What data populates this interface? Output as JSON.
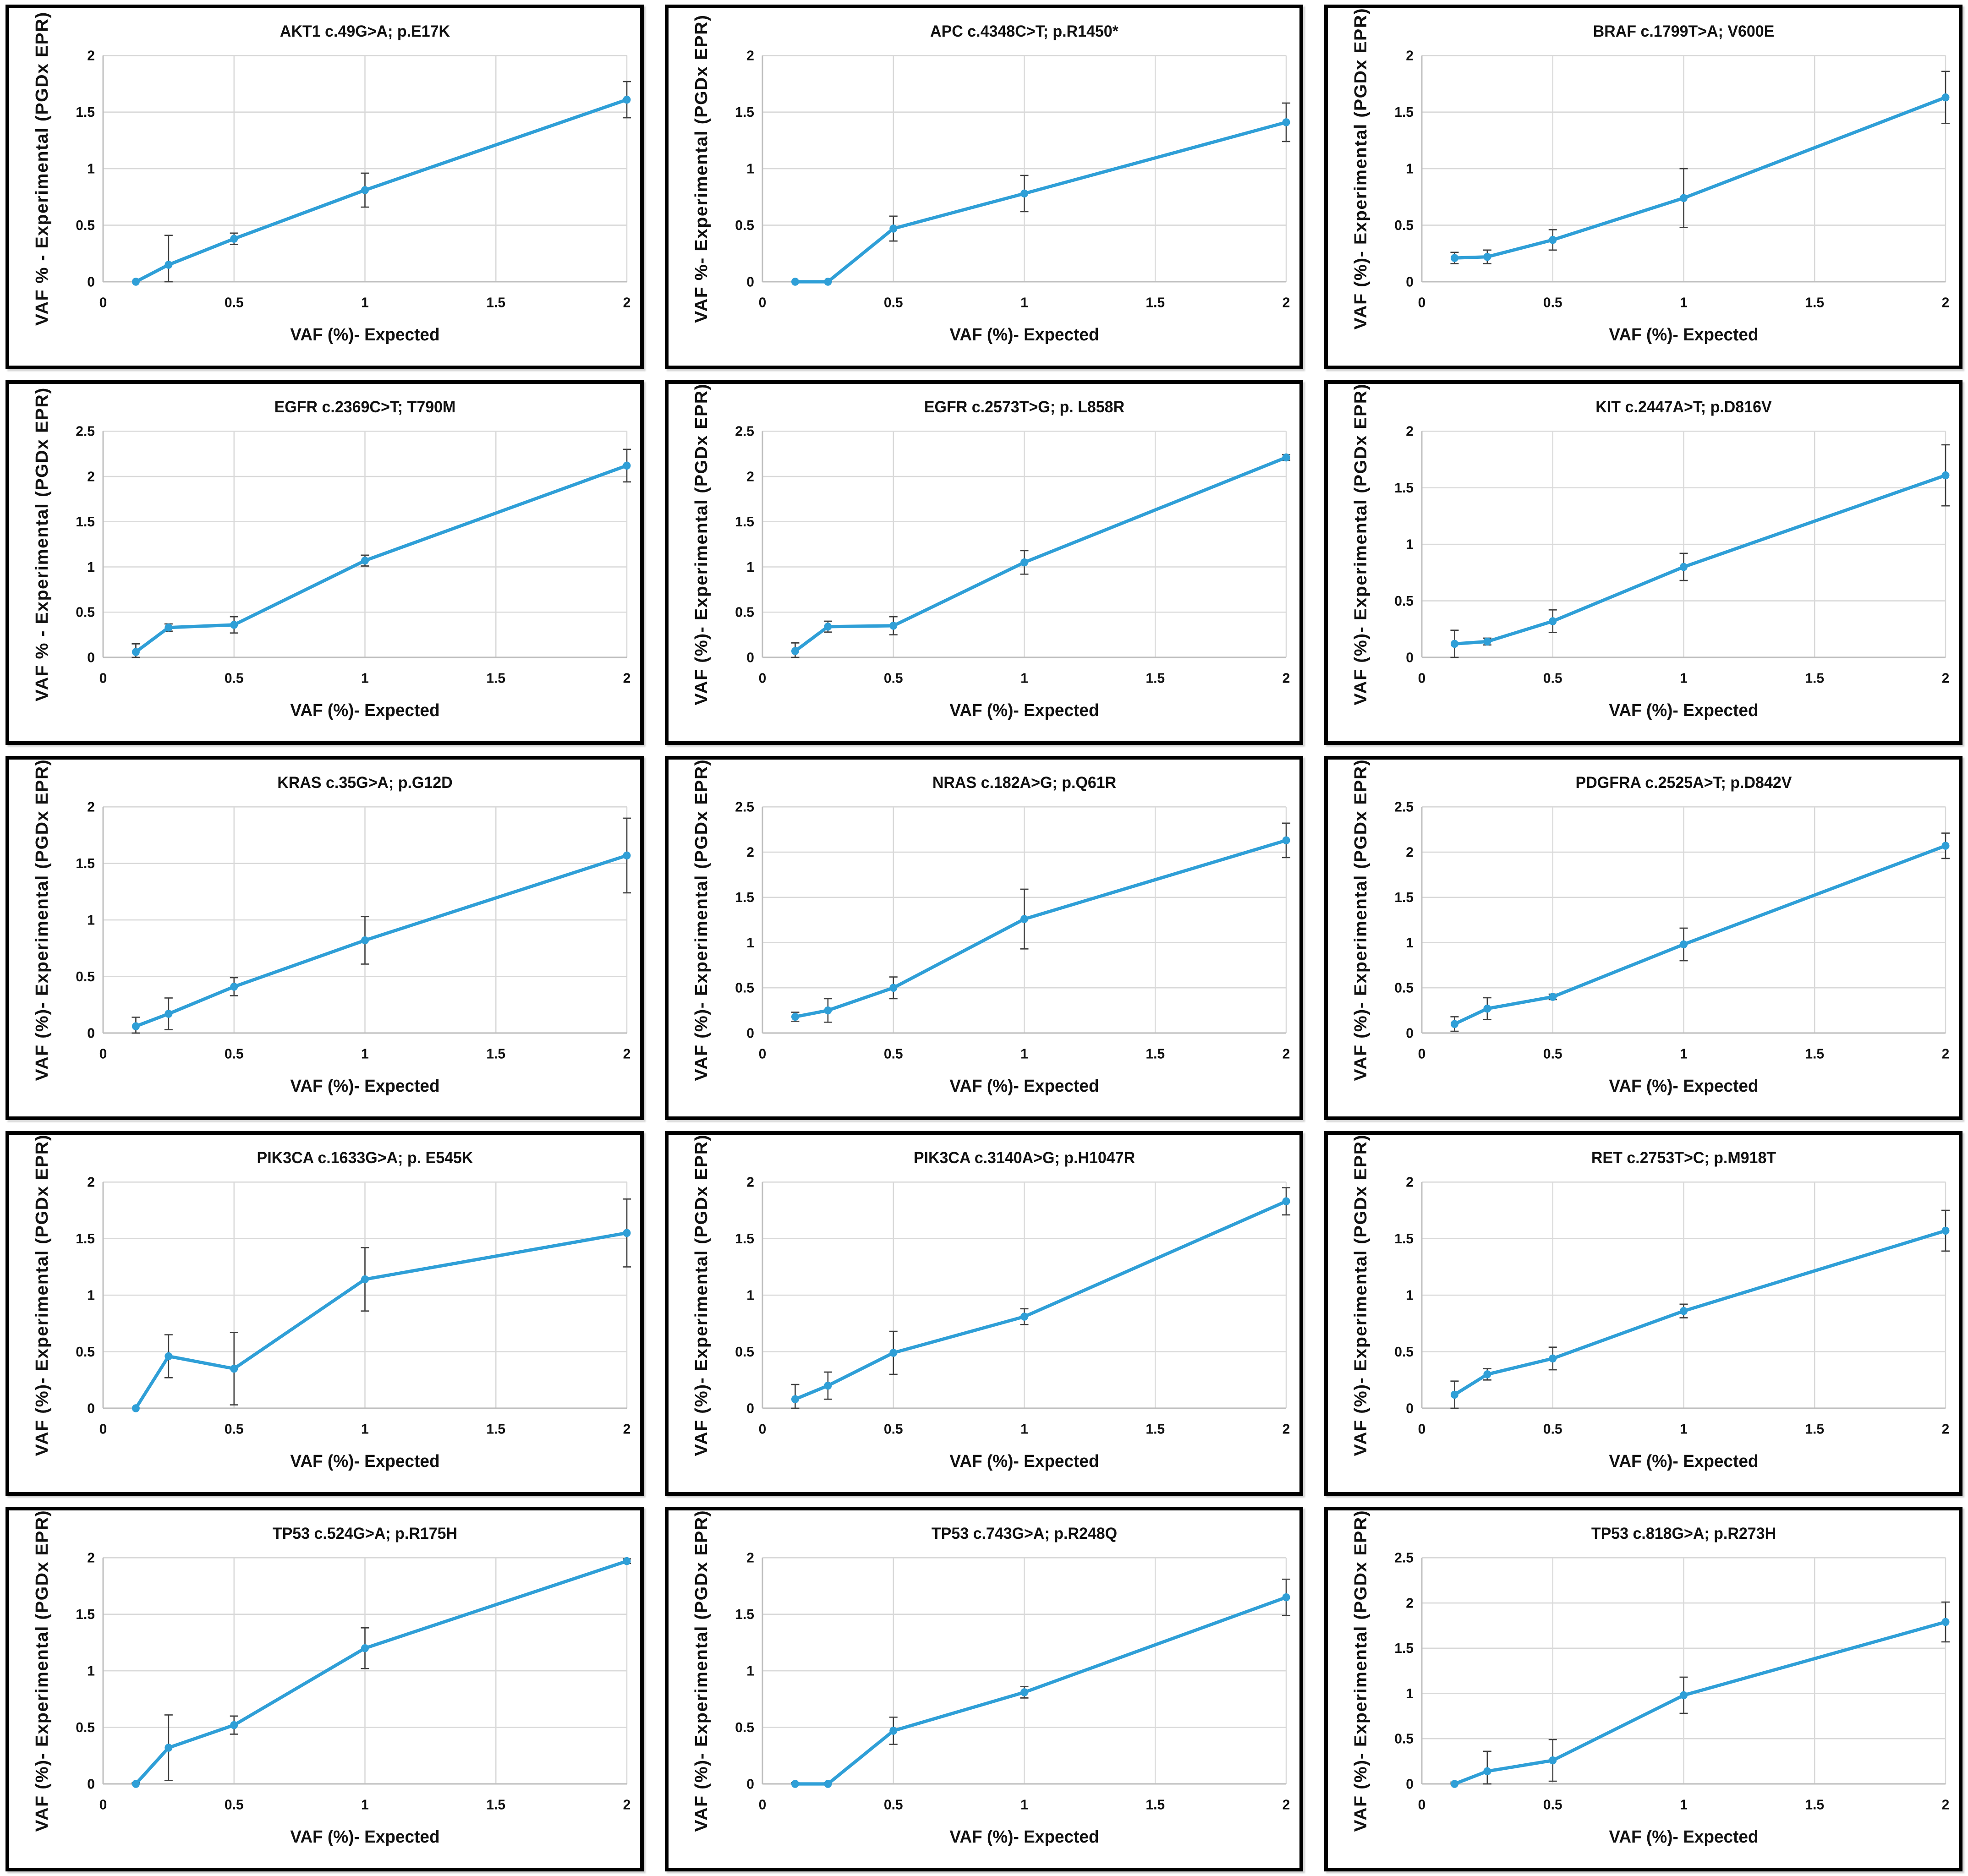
{
  "page": {
    "background": "#ffffff",
    "layout": "5x3 grid of variant linearity plots"
  },
  "styles": {
    "line_color": "#2f9fd7",
    "marker_color": "#2f9fd7",
    "error_bar_color": "#3f3f3f",
    "grid_color": "#d9d9d9",
    "axis_color": "#bfbfbf",
    "text_color": "#111111",
    "panel_border_color": "#000000"
  },
  "chart_data": [
    {
      "type": "line",
      "title": "AKT1 c.49G>A; p.E17K",
      "xlabel": "VAF (%)- Expected",
      "ylabel": "VAF % - Experimental (PGDx EPR)",
      "x": [
        0.125,
        0.25,
        0.5,
        1,
        2
      ],
      "y": [
        0.0,
        0.15,
        0.38,
        0.81,
        1.61
      ],
      "yerr": [
        0.0,
        0.26,
        0.05,
        0.15,
        0.16
      ],
      "xlim": [
        0,
        2
      ],
      "ylim": [
        0,
        2
      ],
      "xticks": [
        0,
        0.5,
        1,
        1.5,
        2
      ],
      "yticks": [
        0,
        0.5,
        1,
        1.5,
        2
      ],
      "grid": true,
      "legend": false
    },
    {
      "type": "line",
      "title": "APC c.4348C>T; p.R1450*",
      "xlabel": "VAF (%)- Expected",
      "ylabel": "VAF %- Experimental (PGDx EPR)",
      "x": [
        0.125,
        0.25,
        0.5,
        1,
        2
      ],
      "y": [
        0.0,
        0.0,
        0.47,
        0.78,
        1.41
      ],
      "yerr": [
        0.0,
        0.01,
        0.11,
        0.16,
        0.17
      ],
      "xlim": [
        0,
        2
      ],
      "ylim": [
        0,
        2
      ],
      "xticks": [
        0,
        0.5,
        1,
        1.5,
        2
      ],
      "yticks": [
        0,
        0.5,
        1,
        1.5,
        2
      ],
      "grid": true,
      "legend": false
    },
    {
      "type": "line",
      "title": "BRAF c.1799T>A; V600E",
      "xlabel": "VAF (%)- Expected",
      "ylabel": "VAF (%)- Experimental (PGDx EPR)",
      "x": [
        0.125,
        0.25,
        0.5,
        1,
        2
      ],
      "y": [
        0.21,
        0.22,
        0.37,
        0.74,
        1.63
      ],
      "yerr": [
        0.05,
        0.06,
        0.09,
        0.26,
        0.23
      ],
      "xlim": [
        0,
        2
      ],
      "ylim": [
        0,
        2
      ],
      "xticks": [
        0,
        0.5,
        1,
        1.5,
        2
      ],
      "yticks": [
        0,
        0.5,
        1,
        1.5,
        2
      ],
      "grid": true,
      "legend": false
    },
    {
      "type": "line",
      "title": "EGFR c.2369C>T; T790M",
      "xlabel": "VAF (%)- Expected",
      "ylabel": "VAF % - Experimental (PGDx EPR)",
      "x": [
        0.125,
        0.25,
        0.5,
        1,
        2
      ],
      "y": [
        0.06,
        0.33,
        0.36,
        1.07,
        2.12
      ],
      "yerr": [
        0.09,
        0.04,
        0.09,
        0.06,
        0.18
      ],
      "xlim": [
        0,
        2
      ],
      "ylim": [
        0,
        2.5
      ],
      "xticks": [
        0,
        0.5,
        1,
        1.5,
        2
      ],
      "yticks": [
        0,
        0.5,
        1,
        1.5,
        2,
        2.5
      ],
      "grid": true,
      "legend": false
    },
    {
      "type": "line",
      "title": "EGFR c.2573T>G; p. L858R",
      "xlabel": "VAF (%)- Expected",
      "ylabel": "VAF (%)- Experimental (PGDx EPR)",
      "x": [
        0.125,
        0.25,
        0.5,
        1,
        2
      ],
      "y": [
        0.07,
        0.34,
        0.35,
        1.05,
        2.21
      ],
      "yerr": [
        0.09,
        0.06,
        0.1,
        0.13,
        0.03
      ],
      "xlim": [
        0,
        2
      ],
      "ylim": [
        0,
        2.5
      ],
      "xticks": [
        0,
        0.5,
        1,
        1.5,
        2
      ],
      "yticks": [
        0,
        0.5,
        1,
        1.5,
        2,
        2.5
      ],
      "grid": true,
      "legend": false
    },
    {
      "type": "line",
      "title": "KIT c.2447A>T; p.D816V",
      "xlabel": "VAF (%)- Expected",
      "ylabel": "VAF (%)- Experimental (PGDx EPR)",
      "x": [
        0.125,
        0.25,
        0.5,
        1,
        2
      ],
      "y": [
        0.12,
        0.14,
        0.32,
        0.8,
        1.61
      ],
      "yerr": [
        0.12,
        0.03,
        0.1,
        0.12,
        0.27
      ],
      "xlim": [
        0,
        2
      ],
      "ylim": [
        0,
        2
      ],
      "xticks": [
        0,
        0.5,
        1,
        1.5,
        2
      ],
      "yticks": [
        0,
        0.5,
        1,
        1.5,
        2
      ],
      "grid": true,
      "legend": false
    },
    {
      "type": "line",
      "title": "KRAS c.35G>A; p.G12D",
      "xlabel": "VAF (%)- Expected",
      "ylabel": "VAF (%)- Experimental (PGDx EPR)",
      "x": [
        0.125,
        0.25,
        0.5,
        1,
        2
      ],
      "y": [
        0.06,
        0.17,
        0.41,
        0.82,
        1.57
      ],
      "yerr": [
        0.08,
        0.14,
        0.08,
        0.21,
        0.33
      ],
      "xlim": [
        0,
        2
      ],
      "ylim": [
        0,
        2
      ],
      "xticks": [
        0,
        0.5,
        1,
        1.5,
        2
      ],
      "yticks": [
        0,
        0.5,
        1,
        1.5,
        2
      ],
      "grid": true,
      "legend": false
    },
    {
      "type": "line",
      "title": "NRAS c.182A>G; p.Q61R",
      "xlabel": "VAF (%)- Expected",
      "ylabel": "VAF (%)- Experimental (PGDx EPR)",
      "x": [
        0.125,
        0.25,
        0.5,
        1,
        2
      ],
      "y": [
        0.18,
        0.25,
        0.5,
        1.26,
        2.13
      ],
      "yerr": [
        0.05,
        0.13,
        0.12,
        0.33,
        0.19
      ],
      "xlim": [
        0,
        2
      ],
      "ylim": [
        0,
        2.5
      ],
      "xticks": [
        0,
        0.5,
        1,
        1.5,
        2
      ],
      "yticks": [
        0,
        0.5,
        1,
        1.5,
        2,
        2.5
      ],
      "grid": true,
      "legend": false
    },
    {
      "type": "line",
      "title": "PDGFRA c.2525A>T; p.D842V",
      "xlabel": "VAF (%)- Expected",
      "ylabel": "VAF (%)- Experimental  (PGDx EPR)",
      "x": [
        0.125,
        0.25,
        0.5,
        1,
        2
      ],
      "y": [
        0.1,
        0.27,
        0.4,
        0.98,
        2.07
      ],
      "yerr": [
        0.08,
        0.12,
        0.03,
        0.18,
        0.14
      ],
      "xlim": [
        0,
        2
      ],
      "ylim": [
        0,
        2.5
      ],
      "xticks": [
        0,
        0.5,
        1,
        1.5,
        2
      ],
      "yticks": [
        0,
        0.5,
        1,
        1.5,
        2,
        2.5
      ],
      "grid": true,
      "legend": false
    },
    {
      "type": "line",
      "title": "PIK3CA c.1633G>A; p. E545K",
      "xlabel": "VAF (%)- Expected",
      "ylabel": "VAF (%)- Experimental (PGDx EPR)",
      "x": [
        0.125,
        0.25,
        0.5,
        1,
        2
      ],
      "y": [
        0.0,
        0.46,
        0.35,
        1.14,
        1.55
      ],
      "yerr": [
        0.0,
        0.19,
        0.32,
        0.28,
        0.3
      ],
      "xlim": [
        0,
        2
      ],
      "ylim": [
        0,
        2
      ],
      "xticks": [
        0,
        0.5,
        1,
        1.5,
        2
      ],
      "yticks": [
        0,
        0.5,
        1,
        1.5,
        2
      ],
      "grid": true,
      "legend": false
    },
    {
      "type": "line",
      "title": "PIK3CA c.3140A>G; p.H1047R",
      "xlabel": "VAF (%)- Expected",
      "ylabel": "VAF (%)- Experimental (PGDx EPR)",
      "x": [
        0.125,
        0.25,
        0.5,
        1,
        2
      ],
      "y": [
        0.08,
        0.2,
        0.49,
        0.81,
        1.83
      ],
      "yerr": [
        0.13,
        0.12,
        0.19,
        0.07,
        0.12
      ],
      "xlim": [
        0,
        2
      ],
      "ylim": [
        0,
        2
      ],
      "xticks": [
        0,
        0.5,
        1,
        1.5,
        2
      ],
      "yticks": [
        0,
        0.5,
        1,
        1.5,
        2
      ],
      "grid": true,
      "legend": false
    },
    {
      "type": "line",
      "title": "RET c.2753T>C; p.M918T",
      "xlabel": "VAF (%)- Expected",
      "ylabel": "VAF (%)- Experimental (PGDx EPR)",
      "x": [
        0.125,
        0.25,
        0.5,
        1,
        2
      ],
      "y": [
        0.12,
        0.3,
        0.44,
        0.86,
        1.57
      ],
      "yerr": [
        0.12,
        0.05,
        0.1,
        0.06,
        0.18
      ],
      "xlim": [
        0,
        2
      ],
      "ylim": [
        0,
        2
      ],
      "xticks": [
        0,
        0.5,
        1,
        1.5,
        2
      ],
      "yticks": [
        0,
        0.5,
        1,
        1.5,
        2
      ],
      "grid": true,
      "legend": false
    },
    {
      "type": "line",
      "title": "TP53 c.524G>A; p.R175H",
      "xlabel": "VAF (%)- Expected",
      "ylabel": "VAF (%)- Experimental (PGDx EPR)",
      "x": [
        0.125,
        0.25,
        0.5,
        1,
        2
      ],
      "y": [
        0.0,
        0.32,
        0.52,
        1.2,
        1.97
      ],
      "yerr": [
        0.01,
        0.29,
        0.08,
        0.18,
        0.02
      ],
      "xlim": [
        0,
        2
      ],
      "ylim": [
        0,
        2
      ],
      "xticks": [
        0,
        0.5,
        1,
        1.5,
        2
      ],
      "yticks": [
        0,
        0.5,
        1,
        1.5,
        2
      ],
      "grid": true,
      "legend": false
    },
    {
      "type": "line",
      "title": "TP53 c.743G>A; p.R248Q",
      "xlabel": "VAF (%)- Expected",
      "ylabel": "VAF (%)- Experimental (PGDx EPR)",
      "x": [
        0.125,
        0.25,
        0.5,
        1,
        2
      ],
      "y": [
        0.0,
        0.0,
        0.47,
        0.81,
        1.65
      ],
      "yerr": [
        0.01,
        0.01,
        0.12,
        0.05,
        0.16
      ],
      "xlim": [
        0,
        2
      ],
      "ylim": [
        0,
        2
      ],
      "xticks": [
        0,
        0.5,
        1,
        1.5,
        2
      ],
      "yticks": [
        0,
        0.5,
        1,
        1.5,
        2
      ],
      "grid": true,
      "legend": false
    },
    {
      "type": "line",
      "title": "TP53 c.818G>A; p.R273H",
      "xlabel": "VAF (%)- Expected",
      "ylabel": "VAF (%)- Experimental (PGDx EPR)",
      "x": [
        0.125,
        0.25,
        0.5,
        1,
        2
      ],
      "y": [
        0.0,
        0.14,
        0.26,
        0.98,
        1.79
      ],
      "yerr": [
        0.02,
        0.22,
        0.23,
        0.2,
        0.22
      ],
      "xlim": [
        0,
        2
      ],
      "ylim": [
        0,
        2.5
      ],
      "xticks": [
        0,
        0.5,
        1,
        1.5,
        2
      ],
      "yticks": [
        0,
        0.5,
        1,
        1.5,
        2,
        2.5
      ],
      "grid": true,
      "legend": false
    }
  ]
}
